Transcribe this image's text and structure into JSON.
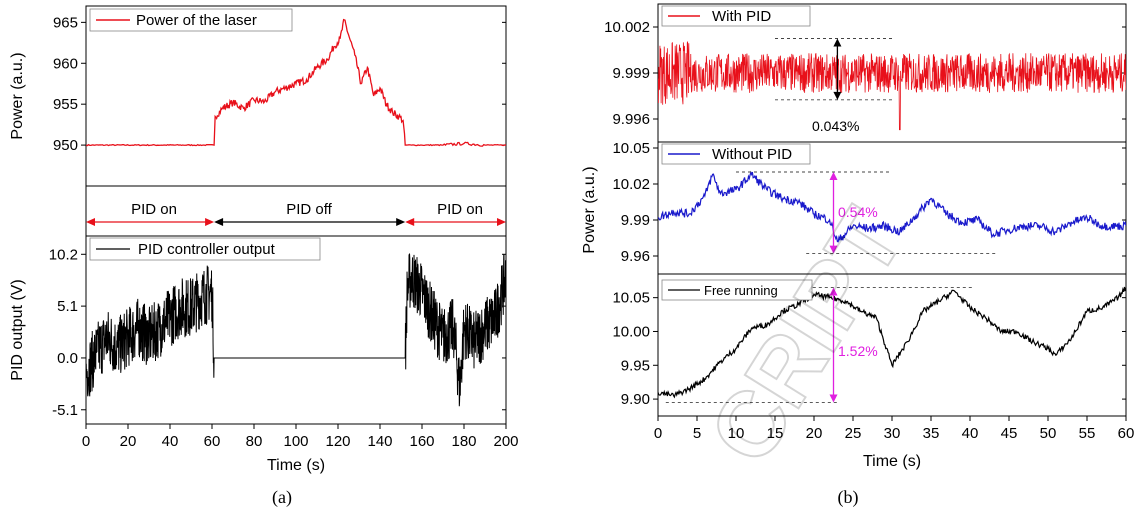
{
  "figure": {
    "caption_a": "(a)",
    "caption_b": "(b)",
    "watermark": "CRIPT"
  },
  "chart_data": [
    {
      "id": "a-top",
      "type": "line",
      "ylabel": "Power (a.u.)",
      "ylim": [
        945,
        967
      ],
      "yticks": [
        950,
        955,
        960,
        965
      ],
      "xlim": [
        0,
        200
      ],
      "series": [
        {
          "name": "Power of the laser",
          "color": "#e8101a",
          "x": [
            0,
            61,
            61.5,
            65,
            70,
            75,
            80,
            85,
            90,
            95,
            100,
            105,
            110,
            115,
            118,
            121,
            123,
            125,
            128,
            131,
            134,
            137,
            140,
            143,
            146,
            149,
            151,
            152,
            155,
            160,
            170,
            180,
            190,
            200
          ],
          "y": [
            950,
            950,
            953.5,
            954.5,
            955.2,
            954.5,
            955.5,
            955.3,
            956.5,
            957,
            957.5,
            958,
            959.5,
            960.5,
            962,
            963,
            965.3,
            963.5,
            961,
            957.5,
            959.5,
            956,
            957,
            955,
            954,
            953.5,
            953,
            950,
            950,
            950,
            950,
            950.2,
            950,
            950
          ]
        }
      ],
      "annotations": [
        {
          "text": "PID on",
          "from": 0,
          "to": 61,
          "color": "#e8101a"
        },
        {
          "text": "PID off",
          "from": 61,
          "to": 152,
          "color": "#000000"
        },
        {
          "text": "PID on",
          "from": 152,
          "to": 200,
          "color": "#e8101a"
        }
      ]
    },
    {
      "id": "a-bottom",
      "type": "line",
      "xlabel": "Time (s)",
      "ylabel": "PID output (V)",
      "xlim": [
        0,
        200
      ],
      "xticks": [
        0,
        20,
        40,
        60,
        80,
        100,
        120,
        140,
        160,
        180,
        200
      ],
      "ylim": [
        -6.5,
        12
      ],
      "yticks": [
        -5.1,
        0.0,
        5.1,
        10.2
      ],
      "ytick_labels": [
        "-5.1",
        "0.0",
        "5.1",
        "10.2"
      ],
      "series": [
        {
          "name": "PID controller output",
          "color": "#000000",
          "x": [
            0,
            5,
            10,
            15,
            20,
            25,
            30,
            35,
            40,
            45,
            50,
            55,
            60,
            61,
            152,
            153,
            155,
            160,
            165,
            170,
            175,
            178,
            180,
            185,
            190,
            195,
            200
          ],
          "y": [
            -1.5,
            0.5,
            2,
            1,
            2,
            3,
            2,
            3,
            4,
            5,
            5,
            6,
            6.5,
            0,
            0,
            7,
            8,
            6.5,
            4,
            2,
            3,
            -3,
            3,
            1.5,
            3,
            4,
            8
          ]
        }
      ]
    },
    {
      "id": "b-top",
      "type": "line",
      "xlim": [
        0,
        60
      ],
      "ylim": [
        9.9945,
        10.0035
      ],
      "yticks": [
        9.996,
        9.999,
        10.002
      ],
      "ytick_labels": [
        "9.996",
        "9.999",
        "10.002"
      ],
      "series": [
        {
          "name": "With PID",
          "color": "#e8101a",
          "mean": 9.999,
          "spread": 0.0013
        }
      ],
      "annotations": [
        {
          "text": "0.043%",
          "x": 23,
          "from": 9.99725,
          "to": 10.00125,
          "color": "#000000"
        }
      ]
    },
    {
      "id": "b-mid",
      "type": "line",
      "xlim": [
        0,
        60
      ],
      "ylim": [
        9.945,
        10.055
      ],
      "yticks": [
        9.96,
        9.99,
        10.02,
        10.05
      ],
      "ytick_labels": [
        "9.96",
        "9.99",
        "10.02",
        "10.05"
      ],
      "series": [
        {
          "name": "Without PID",
          "color": "#1a1acc",
          "x": [
            0,
            2,
            4,
            6,
            7,
            8,
            10,
            12,
            14,
            16,
            18,
            20,
            22,
            23,
            25,
            27,
            29,
            31,
            33,
            35,
            37,
            39,
            41,
            43,
            45,
            47,
            49,
            51,
            53,
            55,
            57,
            60
          ],
          "y": [
            9.992,
            9.997,
            9.995,
            10.01,
            10.028,
            10.012,
            10.015,
            10.028,
            10.015,
            10.008,
            10.005,
            9.995,
            9.99,
            9.972,
            9.985,
            9.983,
            9.985,
            9.98,
            9.993,
            10.008,
            9.995,
            9.988,
            9.99,
            9.978,
            9.982,
            9.985,
            9.985,
            9.98,
            9.988,
            9.992,
            9.985,
            9.985
          ]
        }
      ],
      "annotations": [
        {
          "text": "0.54%",
          "x": 22.5,
          "from": 9.962,
          "to": 10.03,
          "color": "#e020e0"
        }
      ]
    },
    {
      "id": "b-bot",
      "type": "line",
      "xlabel": "Time (s)",
      "xlim": [
        0,
        60
      ],
      "xticks": [
        0,
        5,
        10,
        15,
        20,
        25,
        30,
        35,
        40,
        45,
        50,
        55,
        60
      ],
      "ylim": [
        9.875,
        10.085
      ],
      "yticks": [
        9.9,
        9.95,
        10.0,
        10.05
      ],
      "ytick_labels": [
        "9.90",
        "9.95",
        "10.00",
        "10.05"
      ],
      "series": [
        {
          "name": "Free running",
          "color": "#000000",
          "x": [
            0,
            2,
            4,
            6,
            8,
            10,
            12,
            14,
            16,
            18,
            20,
            22,
            24,
            26,
            28,
            30,
            32,
            34,
            36,
            38,
            40,
            42,
            44,
            46,
            48,
            50,
            51,
            53,
            55,
            57,
            59,
            60
          ],
          "y": [
            9.91,
            9.905,
            9.915,
            9.93,
            9.955,
            9.975,
            10.005,
            10.01,
            10.03,
            10.04,
            10.055,
            10.05,
            10.045,
            10.03,
            10.02,
            9.95,
            9.985,
            10.03,
            10.045,
            10.06,
            10.035,
            10.02,
            10.0,
            10.0,
            9.985,
            9.975,
            9.965,
            9.99,
            10.03,
            10.035,
            10.05,
            10.065
          ]
        }
      ],
      "annotations": [
        {
          "text": "1.52%",
          "x": 22.5,
          "from": 9.895,
          "to": 10.065,
          "color": "#e020e0"
        }
      ]
    }
  ]
}
